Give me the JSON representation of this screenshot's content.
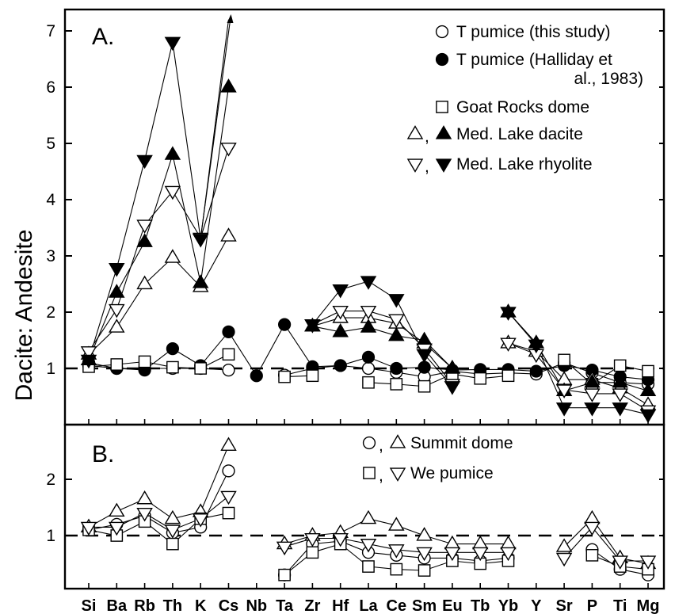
{
  "chart_data": [
    {
      "panel": "A.",
      "type": "line",
      "ylabel": "Dacite: Andesite",
      "ylim": [
        0,
        7.4
      ],
      "yticks": [
        1,
        2,
        3,
        4,
        5,
        6,
        7
      ],
      "reference_line": 1,
      "categories": [
        "Si",
        "Ba",
        "Rb",
        "Th",
        "K",
        "Cs",
        "Nb",
        "Ta",
        "Zr",
        "Hf",
        "La",
        "Ce",
        "Sm",
        "Eu",
        "Tb",
        "Yb",
        "Y",
        "Sr",
        "P",
        "Ti",
        "Mg"
      ],
      "legend": [
        {
          "label": "T pumice (this study)",
          "symbols": [
            "open-circle"
          ]
        },
        {
          "label": "T pumice (Halliday et al., 1983)",
          "symbols": [
            "filled-circle"
          ]
        },
        {
          "label": "Goat Rocks dome",
          "symbols": [
            "open-square"
          ]
        },
        {
          "label": "Med. Lake dacite",
          "symbols": [
            "open-triangle-up",
            "filled-triangle-up"
          ]
        },
        {
          "label": "Med. Lake rhyolite",
          "symbols": [
            "open-triangle-down",
            "filled-triangle-down"
          ]
        }
      ],
      "series": [
        {
          "name": "T pumice (this study)",
          "marker": "open-circle",
          "values": [
            1.05,
            1.0,
            1.0,
            1.0,
            1.0,
            0.97,
            null,
            0.88,
            1.0,
            1.05,
            1.0,
            0.93,
            0.85,
            0.95,
            0.9,
            0.92,
            0.9,
            1.1,
            0.92,
            0.75,
            0.72
          ]
        },
        {
          "name": "T pumice (Halliday et al., 1983)",
          "marker": "filled-circle",
          "values": [
            1.1,
            1.0,
            0.97,
            1.35,
            1.05,
            1.65,
            0.87,
            1.78,
            1.03,
            1.05,
            1.2,
            1.0,
            1.02,
            0.97,
            0.98,
            0.98,
            0.95,
            1.05,
            0.97,
            0.85,
            0.8
          ]
        },
        {
          "name": "Goat Rocks dome",
          "marker": "open-square",
          "values": [
            1.03,
            1.07,
            1.12,
            1.02,
            1.0,
            1.25,
            null,
            0.85,
            0.87,
            null,
            0.75,
            0.72,
            0.68,
            0.9,
            0.82,
            0.87,
            null,
            1.15,
            0.72,
            1.05,
            0.95
          ]
        },
        {
          "name": "Med. Lake dacite",
          "marker": "open-triangle-up",
          "values": [
            1.25,
            1.73,
            2.5,
            2.97,
            2.45,
            3.35,
            null,
            null,
            1.75,
            1.9,
            1.9,
            1.8,
            1.45,
            1.0,
            null,
            1.45,
            1.3,
            0.8,
            0.8,
            0.65,
            0.35
          ]
        },
        {
          "name": "Med. Lake dacite",
          "marker": "filled-triangle-up",
          "values": [
            1.15,
            2.35,
            3.25,
            4.8,
            2.52,
            6.0,
            null,
            null,
            1.75,
            1.65,
            1.73,
            1.58,
            1.5,
            1.0,
            null,
            2.0,
            1.45,
            0.6,
            0.75,
            0.75,
            0.6
          ]
        },
        {
          "name": "Med. Lake rhyolite",
          "marker": "open-triangle-down",
          "values": [
            1.3,
            2.05,
            3.55,
            4.15,
            3.32,
            4.92,
            null,
            null,
            1.78,
            2.02,
            2.02,
            1.87,
            1.35,
            0.72,
            null,
            1.45,
            1.25,
            0.62,
            0.55,
            0.55,
            0.25
          ]
        },
        {
          "name": "Med. Lake rhyolite",
          "marker": "filled-triangle-down",
          "values": [
            1.15,
            2.78,
            4.7,
            6.8,
            3.3,
            7.35,
            null,
            null,
            1.78,
            2.4,
            2.55,
            2.23,
            1.25,
            0.68,
            null,
            2.0,
            1.42,
            0.3,
            0.3,
            0.3,
            0.18
          ]
        }
      ]
    },
    {
      "panel": "B.",
      "type": "line",
      "ylim": [
        0,
        2.9
      ],
      "yticks": [
        1,
        2
      ],
      "reference_line": 1,
      "categories": [
        "Si",
        "Ba",
        "Rb",
        "Th",
        "K",
        "Cs",
        "Nb",
        "Ta",
        "Zr",
        "Hf",
        "La",
        "Ce",
        "Sm",
        "Eu",
        "Tb",
        "Yb",
        "Y",
        "Sr",
        "P",
        "Ti",
        "Mg"
      ],
      "legend": [
        {
          "label": "Summit dome",
          "symbols": [
            "open-circle",
            "open-triangle-up"
          ]
        },
        {
          "label": "We pumice",
          "symbols": [
            "open-square",
            "open-triangle-down"
          ]
        }
      ],
      "series": [
        {
          "name": "Summit dome",
          "marker": "open-circle",
          "values": [
            1.1,
            1.2,
            1.35,
            1.05,
            1.15,
            2.15,
            null,
            0.3,
            0.85,
            0.9,
            0.7,
            0.65,
            0.6,
            0.6,
            0.55,
            0.6,
            null,
            null,
            0.75,
            0.4,
            0.3
          ]
        },
        {
          "name": "Summit dome",
          "marker": "open-triangle-up",
          "values": [
            1.15,
            1.43,
            1.65,
            1.3,
            1.42,
            2.6,
            null,
            0.85,
            1.0,
            1.05,
            1.3,
            1.18,
            1.0,
            0.85,
            0.85,
            0.85,
            null,
            0.8,
            1.3,
            0.6,
            0.5
          ]
        },
        {
          "name": "We pumice",
          "marker": "open-square",
          "values": [
            1.1,
            1.0,
            1.25,
            0.85,
            1.3,
            1.4,
            null,
            0.3,
            0.7,
            0.85,
            0.45,
            0.4,
            0.38,
            0.55,
            0.5,
            0.55,
            null,
            null,
            0.65,
            0.45,
            0.4
          ]
        },
        {
          "name": "We pumice",
          "marker": "open-triangle-down",
          "values": [
            1.15,
            1.15,
            1.4,
            1.1,
            1.3,
            1.7,
            null,
            0.8,
            0.95,
            0.95,
            0.85,
            0.75,
            0.7,
            0.7,
            0.7,
            0.7,
            null,
            0.6,
            1.15,
            0.55,
            0.55
          ]
        }
      ]
    }
  ]
}
